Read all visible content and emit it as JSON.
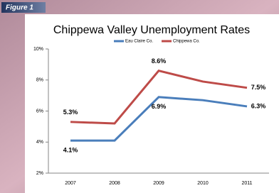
{
  "figure_label": "Figure 1",
  "chart_data": {
    "type": "line",
    "title": "Chippewa Valley Unemployment Rates",
    "categories": [
      "2007",
      "2008",
      "2009",
      "2010",
      "2011"
    ],
    "series": [
      {
        "name": "Eau Claire Co.",
        "color": "#4a7ebb",
        "values": [
          4.1,
          4.1,
          6.9,
          6.7,
          6.3
        ],
        "value_labels": [
          "4.1%",
          null,
          "6.9%",
          null,
          "6.3%"
        ]
      },
      {
        "name": "Chippewa Co.",
        "color": "#be4b48",
        "values": [
          5.3,
          5.2,
          8.6,
          7.9,
          7.5
        ],
        "value_labels": [
          "5.3%",
          null,
          "8.6%",
          null,
          "7.5%"
        ]
      }
    ],
    "ylim": [
      2,
      10
    ],
    "yticks": [
      {
        "value": 2,
        "label": "2%"
      },
      {
        "value": 4,
        "label": "4%"
      },
      {
        "value": 6,
        "label": "6%"
      },
      {
        "value": 8,
        "label": "8%"
      },
      {
        "value": 10,
        "label": "10%"
      }
    ],
    "legend": "top",
    "grid": false
  }
}
